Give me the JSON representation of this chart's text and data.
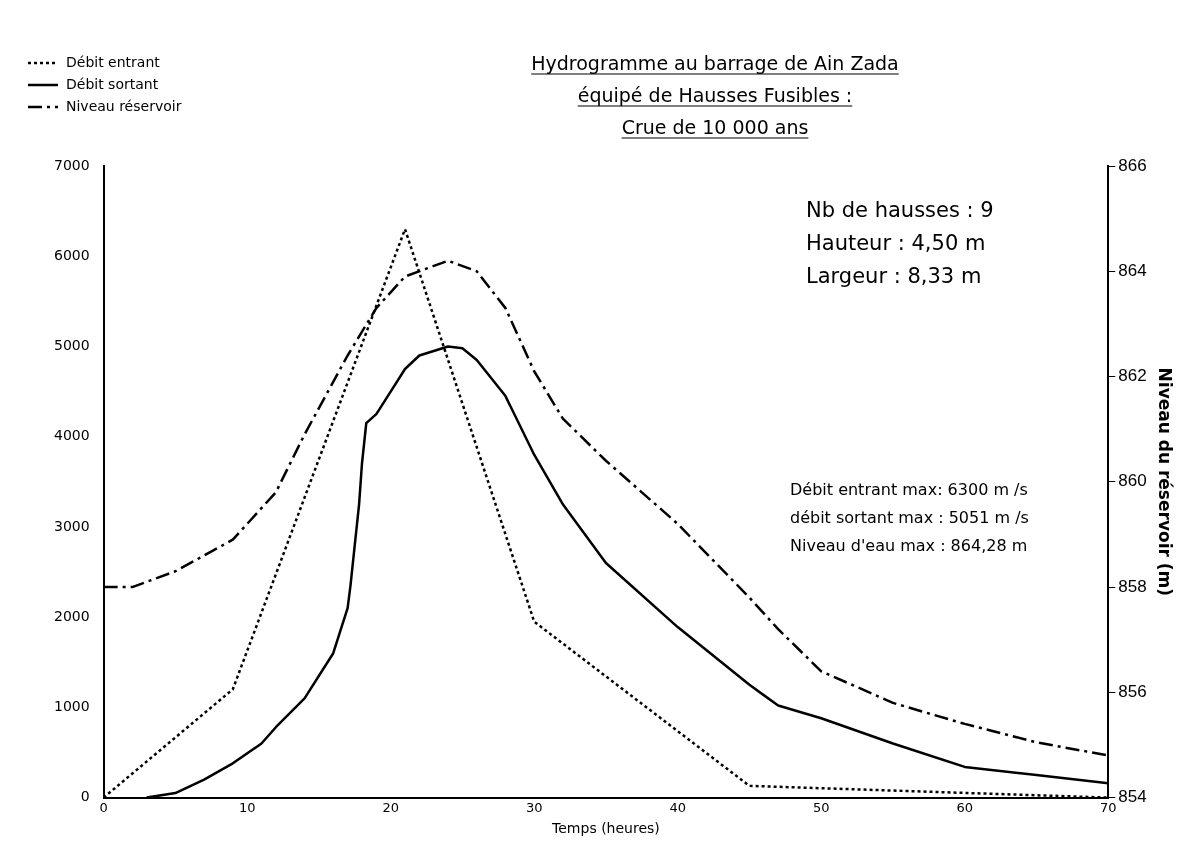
{
  "chart_data": {
    "type": "line",
    "title": "Hydrogramme au barrage de Ain Zada\néquipé de Hausses Fusibles :\nCrue de 10 000 ans",
    "xlabel": "Temps (heures)",
    "y2label": "Niveau du réservoir (m)",
    "xlim": [
      0,
      70
    ],
    "xticks": [
      0,
      10,
      20,
      30,
      40,
      50,
      60,
      70
    ],
    "ylim": [
      0,
      7000
    ],
    "yticks": [
      0,
      1000,
      2000,
      3000,
      4000,
      5000,
      6000,
      7000
    ],
    "y2lim": [
      854,
      866
    ],
    "y2ticks": [
      854,
      856,
      858,
      860,
      862,
      864,
      866
    ],
    "grid": false,
    "legend": "top left",
    "marker": "none",
    "series": [
      {
        "name": "Débit entrant",
        "color": "#000000",
        "line_style": "dotted",
        "x": [
          0,
          9,
          21,
          30,
          45,
          70
        ],
        "values": [
          0,
          1200,
          6300,
          1950,
          130,
          0
        ]
      },
      {
        "name": "Débit sortant",
        "color": "#000000",
        "line_style": "solid",
        "x": [
          3,
          5,
          7,
          9,
          11,
          12,
          14,
          16,
          17,
          17.2,
          17.5,
          17.8,
          18,
          18.3,
          19,
          20,
          21,
          22,
          24,
          25,
          26,
          28,
          30,
          32,
          35,
          40,
          45,
          47,
          50,
          55,
          60,
          65,
          70
        ],
        "values": [
          0,
          50,
          200,
          380,
          600,
          780,
          1100,
          1600,
          2100,
          2350,
          2800,
          3250,
          3700,
          4150,
          4250,
          4500,
          4750,
          4900,
          5000,
          4980,
          4850,
          4450,
          3800,
          3250,
          2600,
          1890,
          1250,
          1020,
          880,
          600,
          340,
          250,
          160
        ]
      },
      {
        "name": "Niveau réservoir",
        "color": "#000000",
        "line_style": "dashdot",
        "axis": "y2",
        "x": [
          0,
          2,
          5,
          9,
          12,
          14,
          17,
          19,
          21,
          24,
          26,
          28,
          30,
          32,
          35,
          40,
          45,
          47,
          50,
          55,
          60,
          65,
          70
        ],
        "values": [
          858.0,
          858.0,
          858.3,
          858.9,
          859.8,
          860.9,
          862.4,
          863.3,
          863.9,
          864.2,
          864.0,
          863.3,
          862.1,
          861.2,
          860.4,
          859.2,
          857.8,
          857.2,
          856.4,
          855.8,
          855.4,
          855.05,
          854.8
        ]
      }
    ],
    "annotations": [
      "Nb de hausses : 9\nHauteur : 4,50 m\nLargeur : 8,33 m",
      "Débit entrant max: 6300 m /s\ndébit sortant max : 5051 m /s\nNiveau d'eau max : 864,28 m"
    ]
  }
}
